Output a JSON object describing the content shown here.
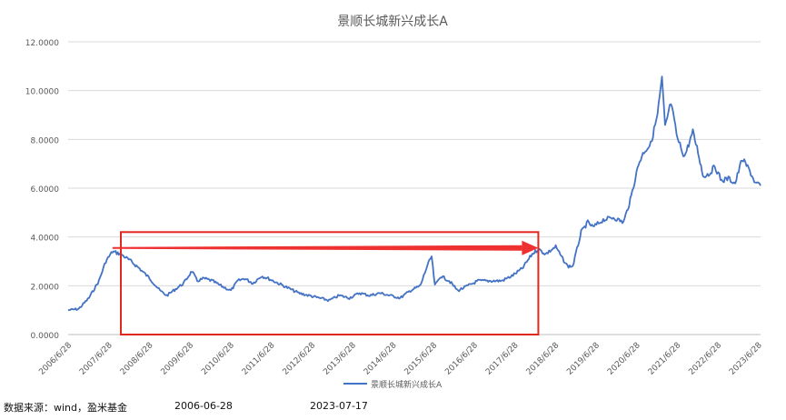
{
  "chart_data": {
    "type": "line",
    "title": "景顺长城新兴成长A",
    "xlabel": "",
    "ylabel": "",
    "ylim": [
      0,
      12
    ],
    "yticks": [
      "0.0000",
      "2.0000",
      "4.0000",
      "6.0000",
      "8.0000",
      "10.0000",
      "12.0000"
    ],
    "xticks": [
      "2006/6/28",
      "2007/6/28",
      "2008/6/28",
      "2009/6/28",
      "2010/6/28",
      "2011/6/28",
      "2012/6/28",
      "2013/6/28",
      "2014/6/28",
      "2015/6/28",
      "2016/6/28",
      "2017/6/28",
      "2018/6/28",
      "2019/6/28",
      "2020/6/28",
      "2021/6/28",
      "2022/6/28",
      "2023/6/28"
    ],
    "grid": "horizontal",
    "legend_position": "bottom",
    "series": [
      {
        "name": "景顺长城新兴成长A",
        "color": "#4472c4",
        "x": [
          "2006-06-28",
          "2006-10-01",
          "2007-01-01",
          "2007-04-01",
          "2007-06-01",
          "2007-08-01",
          "2007-10-15",
          "2008-01-15",
          "2008-04-01",
          "2008-07-01",
          "2008-10-01",
          "2008-12-01",
          "2009-03-01",
          "2009-05-01",
          "2009-07-15",
          "2009-09-01",
          "2009-11-01",
          "2010-01-15",
          "2010-04-01",
          "2010-07-01",
          "2010-09-01",
          "2010-11-01",
          "2011-01-15",
          "2011-04-01",
          "2011-06-01",
          "2011-09-01",
          "2011-12-01",
          "2012-03-01",
          "2012-06-01",
          "2012-09-01",
          "2012-12-01",
          "2013-03-01",
          "2013-06-01",
          "2013-09-01",
          "2013-12-01",
          "2014-03-01",
          "2014-06-01",
          "2014-09-01",
          "2014-12-01",
          "2015-03-01",
          "2015-05-01",
          "2015-06-10",
          "2015-07-10",
          "2015-09-01",
          "2015-11-15",
          "2016-02-01",
          "2016-05-01",
          "2016-08-01",
          "2016-11-01",
          "2017-03-01",
          "2017-06-01",
          "2017-09-01",
          "2017-12-01",
          "2018-01-25",
          "2018-04-01",
          "2018-07-01",
          "2018-09-01",
          "2018-10-15",
          "2018-12-01",
          "2019-02-15",
          "2019-04-15",
          "2019-06-01",
          "2019-09-01",
          "2019-12-01",
          "2020-03-01",
          "2020-05-01",
          "2020-07-15",
          "2020-09-01",
          "2020-11-01",
          "2021-01-01",
          "2021-02-10",
          "2021-03-10",
          "2021-05-01",
          "2021-07-01",
          "2021-09-01",
          "2021-11-15",
          "2022-01-01",
          "2022-02-15",
          "2022-04-15",
          "2022-06-01",
          "2022-08-01",
          "2022-10-01",
          "2022-12-01",
          "2023-02-01",
          "2023-04-01",
          "2023-06-01",
          "2023-07-17"
        ],
        "values": [
          1.0,
          1.05,
          1.5,
          2.2,
          3.0,
          3.4,
          3.3,
          3.0,
          2.7,
          2.3,
          1.8,
          1.6,
          1.9,
          2.1,
          2.6,
          2.2,
          2.3,
          2.2,
          2.0,
          1.8,
          2.2,
          2.3,
          2.1,
          2.4,
          2.3,
          2.1,
          1.9,
          1.7,
          1.6,
          1.5,
          1.4,
          1.6,
          1.5,
          1.7,
          1.6,
          1.7,
          1.6,
          1.5,
          1.8,
          2.0,
          2.8,
          3.2,
          2.0,
          2.4,
          2.2,
          1.8,
          2.0,
          2.2,
          2.2,
          2.2,
          2.4,
          2.7,
          3.3,
          3.5,
          3.3,
          3.6,
          3.1,
          2.8,
          2.8,
          4.2,
          4.6,
          4.4,
          4.7,
          4.8,
          4.6,
          5.5,
          7.0,
          7.5,
          7.8,
          9.0,
          10.5,
          8.5,
          9.5,
          8.0,
          7.3,
          8.3,
          7.5,
          6.5,
          6.6,
          6.9,
          6.3,
          6.4,
          6.2,
          7.2,
          6.8,
          6.2,
          6.1
        ]
      }
    ],
    "annotations": {
      "highlight_box": {
        "x_start": "2007-10-15",
        "x_end": "2018-01-25",
        "y_low": 0.0,
        "y_high": 4.2,
        "color": "#e0281e"
      },
      "arrow": {
        "x_start": "2007-08-01",
        "x_end": "2018-01-25",
        "y": 3.55,
        "color": "#ee3030"
      }
    }
  },
  "footer": {
    "source": "数据来源：wind，盈米基金",
    "start_date": "2006-06-28",
    "end_date": "2023-07-17"
  }
}
